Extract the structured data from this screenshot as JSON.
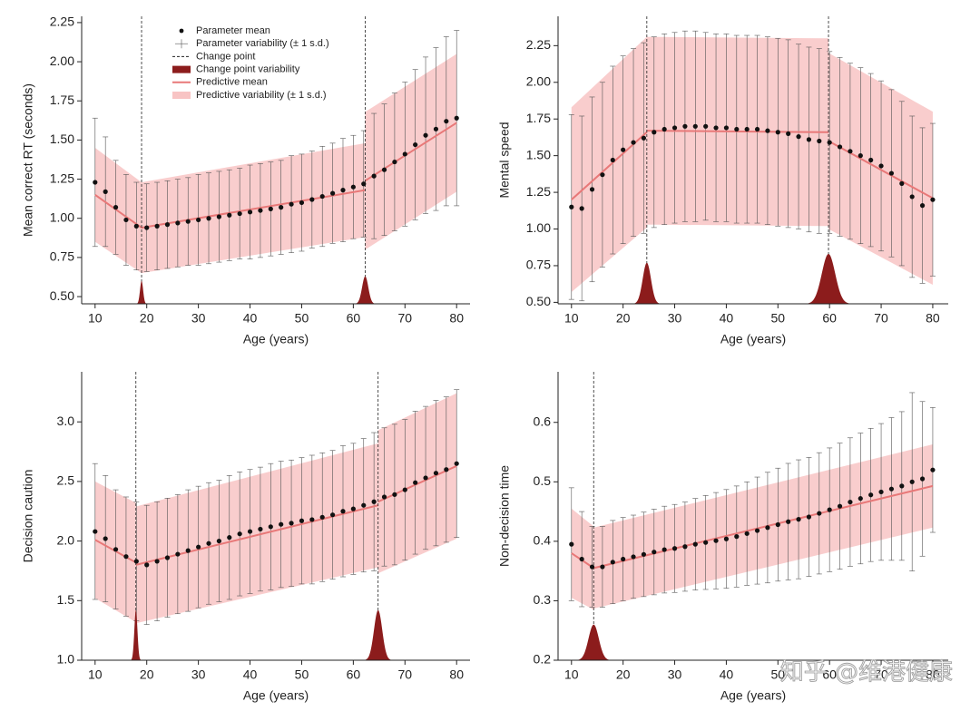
{
  "chart_data": [
    {
      "type": "changepoint",
      "ylabel": "Mean correct RT (seconds)",
      "xlabel": "Age (years)",
      "xlim": [
        7.4,
        82.6
      ],
      "xticks": [
        10,
        20,
        30,
        40,
        50,
        60,
        70,
        80
      ],
      "ylim": [
        0.454,
        2.29
      ],
      "yticks": [
        {
          "value": 0.5,
          "label": "0.50"
        },
        0.75,
        {
          "value": 1.0,
          "label": "1.00"
        },
        1.25,
        {
          "value": 1.5,
          "label": "1.50"
        },
        1.75,
        {
          "value": 2.0,
          "label": "2.00"
        },
        2.25
      ],
      "colors": {
        "point": "#111111",
        "band": "#f8c4c4",
        "line": "#e87878",
        "change_point": "#8c1c1c"
      },
      "legend": {
        "mean": "Parameter mean",
        "variability": "Parameter variability (± 1 s.d.)",
        "change_point": "Change point",
        "change_point_variability": "Change point variability",
        "predictive_mean": "Predictive mean",
        "predictive_variability": "Predictive variability (± 1 s.d.)"
      },
      "points": {
        "x": [
          10,
          12,
          14,
          16,
          18,
          20,
          22,
          24,
          26,
          28,
          30,
          32,
          34,
          36,
          38,
          40,
          42,
          44,
          46,
          48,
          50,
          52,
          54,
          56,
          58,
          60,
          62,
          64,
          66,
          68,
          70,
          72,
          74,
          76,
          78,
          80
        ],
        "values": [
          1.23,
          1.17,
          1.07,
          0.99,
          0.95,
          0.94,
          0.95,
          0.96,
          0.97,
          0.98,
          0.99,
          1.0,
          1.01,
          1.02,
          1.03,
          1.04,
          1.05,
          1.06,
          1.07,
          1.09,
          1.1,
          1.12,
          1.14,
          1.16,
          1.18,
          1.2,
          1.22,
          1.27,
          1.31,
          1.36,
          1.41,
          1.47,
          1.53,
          1.57,
          1.62,
          1.64
        ],
        "sd": [
          0.41,
          0.35,
          0.3,
          0.29,
          0.28,
          0.28,
          0.28,
          0.28,
          0.28,
          0.28,
          0.29,
          0.29,
          0.29,
          0.29,
          0.29,
          0.3,
          0.3,
          0.3,
          0.3,
          0.31,
          0.31,
          0.31,
          0.32,
          0.32,
          0.33,
          0.33,
          0.34,
          0.4,
          0.42,
          0.44,
          0.46,
          0.48,
          0.5,
          0.52,
          0.54,
          0.56
        ]
      },
      "segments": [
        {
          "x": [
            10,
            19
          ],
          "mean": [
            1.15,
            0.94
          ],
          "sd": [
            0.3,
            0.29
          ]
        },
        {
          "x": [
            19,
            62.3
          ],
          "mean": [
            0.94,
            1.18
          ],
          "sd": [
            0.29,
            0.3
          ]
        },
        {
          "x": [
            62.3,
            80
          ],
          "mean": [
            1.24,
            1.61
          ],
          "sd": [
            0.44,
            0.44
          ]
        }
      ],
      "change_points": [
        {
          "x": 19,
          "sd": 0.3,
          "peak": 0.6
        },
        {
          "x": 62.3,
          "sd": 0.6,
          "peak": 0.63
        }
      ]
    },
    {
      "type": "changepoint",
      "ylabel": "Mental speed",
      "xlabel": "Age (years)",
      "xlim": [
        7.4,
        83
      ],
      "xticks": [
        10,
        20,
        30,
        40,
        50,
        60,
        70,
        80
      ],
      "ylim": [
        0.49,
        2.45
      ],
      "yticks": [
        {
          "value": 0.5,
          "label": "0.50"
        },
        0.75,
        {
          "value": 1.0,
          "label": "1.00"
        },
        1.25,
        {
          "value": 1.5,
          "label": "1.50"
        },
        1.75,
        {
          "value": 2.0,
          "label": "2.00"
        },
        2.25
      ],
      "colors": {
        "point": "#111111",
        "band": "#f8c4c4",
        "line": "#e87878",
        "change_point": "#8c1c1c"
      },
      "points": {
        "x": [
          10,
          12,
          14,
          16,
          18,
          20,
          22,
          24,
          26,
          28,
          30,
          32,
          34,
          36,
          38,
          40,
          42,
          44,
          46,
          48,
          50,
          52,
          54,
          56,
          58,
          60,
          62,
          64,
          66,
          68,
          70,
          72,
          74,
          76,
          78,
          80
        ],
        "values": [
          1.15,
          1.14,
          1.27,
          1.37,
          1.47,
          1.54,
          1.59,
          1.62,
          1.66,
          1.68,
          1.69,
          1.7,
          1.7,
          1.7,
          1.69,
          1.69,
          1.68,
          1.68,
          1.68,
          1.67,
          1.66,
          1.65,
          1.63,
          1.61,
          1.6,
          1.59,
          1.56,
          1.53,
          1.5,
          1.47,
          1.43,
          1.38,
          1.31,
          1.22,
          1.16,
          1.2
        ],
        "sd": [
          0.63,
          0.63,
          0.63,
          0.63,
          0.64,
          0.64,
          0.64,
          0.65,
          0.65,
          0.65,
          0.65,
          0.65,
          0.65,
          0.64,
          0.64,
          0.64,
          0.64,
          0.64,
          0.64,
          0.64,
          0.64,
          0.64,
          0.63,
          0.63,
          0.63,
          0.62,
          0.61,
          0.6,
          0.6,
          0.59,
          0.58,
          0.57,
          0.56,
          0.55,
          0.53,
          0.52
        ]
      },
      "segments": [
        {
          "x": [
            10,
            24.6
          ],
          "mean": [
            1.2,
            1.66
          ],
          "sd": [
            0.63,
            0.65
          ]
        },
        {
          "x": [
            24.6,
            59.8
          ],
          "mean": [
            1.67,
            1.66
          ],
          "sd": [
            0.64,
            0.64
          ]
        },
        {
          "x": [
            59.8,
            80
          ],
          "mean": [
            1.6,
            1.21
          ],
          "sd": [
            0.6,
            0.59
          ]
        }
      ],
      "change_points": [
        {
          "x": 24.6,
          "sd": 0.8,
          "peak": 0.77
        },
        {
          "x": 59.8,
          "sd": 1.3,
          "peak": 0.83
        }
      ]
    },
    {
      "type": "changepoint",
      "ylabel": "Decision caution",
      "xlabel": "Age (years)",
      "xlim": [
        7.4,
        82.6
      ],
      "xticks": [
        10,
        20,
        30,
        40,
        50,
        60,
        70,
        80
      ],
      "ylim": [
        1.0,
        3.42
      ],
      "yticks": [
        {
          "value": 1.0,
          "label": "1.0"
        },
        1.5,
        {
          "value": 2.0,
          "label": "2.0"
        },
        2.5,
        {
          "value": 3.0,
          "label": "3.0"
        }
      ],
      "colors": {
        "point": "#111111",
        "band": "#f8c4c4",
        "line": "#e87878",
        "change_point": "#8c1c1c"
      },
      "points": {
        "x": [
          10,
          12,
          14,
          16,
          18,
          20,
          22,
          24,
          26,
          28,
          30,
          32,
          34,
          36,
          38,
          40,
          42,
          44,
          46,
          48,
          50,
          52,
          54,
          56,
          58,
          60,
          62,
          64,
          66,
          68,
          70,
          72,
          74,
          76,
          78,
          80
        ],
        "values": [
          2.08,
          2.02,
          1.93,
          1.87,
          1.83,
          1.8,
          1.83,
          1.86,
          1.89,
          1.92,
          1.95,
          1.98,
          2.0,
          2.03,
          2.06,
          2.08,
          2.1,
          2.12,
          2.14,
          2.15,
          2.17,
          2.18,
          2.2,
          2.22,
          2.25,
          2.27,
          2.3,
          2.33,
          2.37,
          2.39,
          2.43,
          2.49,
          2.53,
          2.57,
          2.6,
          2.65
        ],
        "sd": [
          0.57,
          0.53,
          0.5,
          0.5,
          0.5,
          0.5,
          0.5,
          0.5,
          0.5,
          0.51,
          0.51,
          0.51,
          0.51,
          0.52,
          0.52,
          0.52,
          0.52,
          0.53,
          0.53,
          0.53,
          0.53,
          0.54,
          0.54,
          0.54,
          0.55,
          0.55,
          0.56,
          0.58,
          0.58,
          0.59,
          0.59,
          0.6,
          0.6,
          0.61,
          0.61,
          0.62
        ]
      },
      "segments": [
        {
          "x": [
            10,
            17.9
          ],
          "mean": [
            2.01,
            1.82
          ],
          "sd": [
            0.49,
            0.5
          ]
        },
        {
          "x": [
            17.9,
            64.8
          ],
          "mean": [
            1.8,
            2.3
          ],
          "sd": [
            0.49,
            0.52
          ]
        },
        {
          "x": [
            64.8,
            80
          ],
          "mean": [
            2.33,
            2.63
          ],
          "sd": [
            0.6,
            0.61
          ]
        }
      ],
      "change_points": [
        {
          "x": 17.9,
          "sd": 0.3,
          "peak": 1.42
        },
        {
          "x": 64.8,
          "sd": 0.8,
          "peak": 1.42
        }
      ]
    },
    {
      "type": "changepoint",
      "ylabel": "Non-decision time",
      "xlabel": "Age (years)",
      "xlim": [
        7.4,
        83
      ],
      "xticks": [
        10,
        20,
        30,
        40,
        50,
        60,
        70,
        80
      ],
      "ylim": [
        0.2,
        0.685
      ],
      "yticks": [
        0.2,
        0.3,
        0.4,
        0.5,
        0.6
      ],
      "colors": {
        "point": "#111111",
        "band": "#f8c4c4",
        "line": "#e87878",
        "change_point": "#8c1c1c"
      },
      "points": {
        "x": [
          10,
          12,
          14,
          16,
          18,
          20,
          22,
          24,
          26,
          28,
          30,
          32,
          34,
          36,
          38,
          40,
          42,
          44,
          46,
          48,
          50,
          52,
          54,
          56,
          58,
          60,
          62,
          64,
          66,
          68,
          70,
          72,
          74,
          76,
          78,
          80
        ],
        "values": [
          0.395,
          0.37,
          0.357,
          0.357,
          0.365,
          0.37,
          0.374,
          0.378,
          0.382,
          0.386,
          0.388,
          0.391,
          0.395,
          0.398,
          0.401,
          0.404,
          0.408,
          0.413,
          0.418,
          0.423,
          0.428,
          0.433,
          0.437,
          0.441,
          0.447,
          0.453,
          0.459,
          0.466,
          0.472,
          0.478,
          0.483,
          0.488,
          0.493,
          0.5,
          0.505,
          0.52
        ],
        "sd": [
          0.095,
          0.08,
          0.068,
          0.068,
          0.07,
          0.07,
          0.07,
          0.071,
          0.072,
          0.073,
          0.074,
          0.075,
          0.077,
          0.079,
          0.081,
          0.083,
          0.085,
          0.087,
          0.09,
          0.093,
          0.095,
          0.098,
          0.1,
          0.1,
          0.102,
          0.104,
          0.106,
          0.108,
          0.11,
          0.112,
          0.115,
          0.12,
          0.125,
          0.15,
          0.13,
          0.105
        ]
      },
      "segments": [
        {
          "x": [
            10,
            14.3
          ],
          "mean": [
            0.38,
            0.355
          ],
          "sd": [
            0.075,
            0.07
          ]
        },
        {
          "x": [
            14.3,
            80
          ],
          "mean": [
            0.355,
            0.493
          ],
          "sd": [
            0.068,
            0.07
          ]
        }
      ],
      "change_points": [
        {
          "x": 14.3,
          "sd": 1.0,
          "peak": 0.26
        }
      ]
    }
  ],
  "watermark": "知乎 @维港健康"
}
